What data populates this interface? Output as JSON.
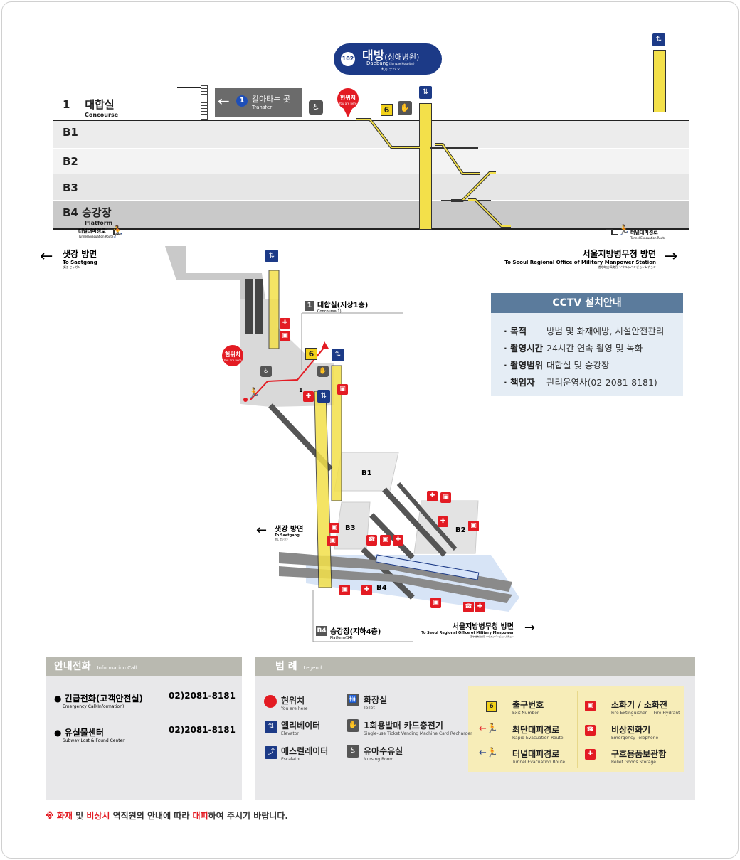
{
  "station": {
    "line_number": "102",
    "name_ko": "대방",
    "name_ko_sub": "(성애병원)",
    "name_en": "Daebang",
    "name_en_sub": "(Sungae Hospital)",
    "name_jp": "大方 テバン"
  },
  "levels": {
    "concourse_num": "1",
    "concourse_ko": "대합실",
    "concourse_en": "Concourse",
    "b1": "B1",
    "b2": "B2",
    "b3": "B3",
    "platform_ko": "B4 승강장",
    "platform_en": "Platform"
  },
  "transfer": {
    "num": "1",
    "label_ko": "갈아타는 곳",
    "label_en": "Transfer"
  },
  "you_are_here": {
    "ko": "현위치",
    "en": "You are here"
  },
  "exit_number": "6",
  "tunnel_route": {
    "ko": "터널대피경로",
    "en": "Tunnel Evacuation Route"
  },
  "direction_left": {
    "ko": "샛강 방면",
    "en": "To Saetgang",
    "jp": "汝江 セッガン"
  },
  "direction_right": {
    "ko": "서울지방병무청 방면",
    "en": "To Seoul Regional Office of Military Manpower Station",
    "jp": "首尔地方兵务厅 ソウルジバンビョンムチョン"
  },
  "iso": {
    "concourse_title": "대합실(지상1층)",
    "concourse_en": "Concourse(1)",
    "platform_title": "승강장(지하4층)",
    "platform_en": "Platform(B4)",
    "platform_badge": "B4",
    "concourse_badge": "1",
    "floor_one": "1",
    "b1": "B1",
    "b2": "B2",
    "b3": "B3",
    "b4": "B4",
    "left_dir_ko": "샛강 방면",
    "left_dir_en": "To Saetgang",
    "left_dir_jp": "汝江 セッガン",
    "right_dir_ko": "서울지방병무청 방면",
    "right_dir_en": "To Seoul Regional Office of Military Manpower",
    "right_dir_jp": "首尔地方兵务厅 ソウルジバンビョンムチョン"
  },
  "cctv": {
    "title": "CCTV 설치안내",
    "rows": [
      {
        "label": "· 목적",
        "value": "방범 및 화재예방, 시설안전관리"
      },
      {
        "label": "· 촬영시간",
        "value": "24시간 연속 촬영 및 녹화"
      },
      {
        "label": "· 촬영범위",
        "value": "대합실 및 승강장"
      },
      {
        "label": "· 책임자",
        "value": "관리운영사(02-2081-8181)"
      }
    ]
  },
  "info_call": {
    "title": "안내전화",
    "title_en": "Information Call",
    "items": [
      {
        "label": "긴급전화(고객안전실)",
        "label_en": "Emergency Call(Information)",
        "phone": "02)2081-8181"
      },
      {
        "label": "유실물센터",
        "label_en": "Subway Lost & Found Center",
        "phone": "02)2081-8181"
      }
    ]
  },
  "legend": {
    "title": "범 례",
    "title_en": "Legend",
    "items": [
      {
        "ko": "현위치",
        "en": "You are here"
      },
      {
        "ko": "엘리베이터",
        "en": "Elevator"
      },
      {
        "ko": "에스컬레이터",
        "en": "Escalator"
      },
      {
        "ko": "화장실",
        "en": "Toilet"
      },
      {
        "ko": "1회용발매 카드충전기",
        "en": "Single-use Ticket Vending Machine Card Recharger"
      },
      {
        "ko": "유아수유실",
        "en": "Nursing Room"
      },
      {
        "ko": "출구번호",
        "en": "Exit Number"
      },
      {
        "ko": "최단대피경로",
        "en": "Rapid Evacuation Route"
      },
      {
        "ko": "터널대피경로",
        "en": "Tunnel Evacuation Route"
      },
      {
        "ko": "소화기 / 소화전",
        "en": "Fire Extinguisher",
        "en2": "Fire Hydrant"
      },
      {
        "ko": "비상전화기",
        "en": "Emergency Telephone"
      },
      {
        "ko": "구호용품보관함",
        "en": "Relief Goods Storage"
      }
    ]
  },
  "notice": {
    "prefix": "※ ",
    "w1": "화재",
    "w2": " 및 ",
    "w3": "비상시",
    "w4": " 역직원의 안내에 따라 ",
    "w5": "대피",
    "w6": "하여 주시기 바랍니다."
  },
  "colors": {
    "navy": "#1c3a87",
    "red": "#e31b23",
    "yellow": "#f3e04a",
    "panel": "#b9b9b0",
    "cctv_head": "#5b7b9c"
  }
}
